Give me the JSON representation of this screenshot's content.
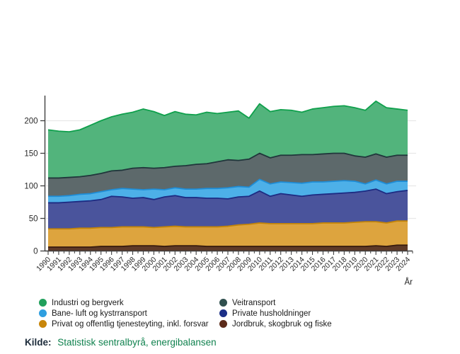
{
  "chart_data": {
    "type": "area",
    "stacked": true,
    "xlabel": "År",
    "ylabel": "",
    "years": [
      1990,
      1991,
      1992,
      1993,
      1994,
      1995,
      1996,
      1997,
      1998,
      1999,
      2000,
      2001,
      2002,
      2003,
      2004,
      2005,
      2006,
      2007,
      2008,
      2009,
      2010,
      2011,
      2012,
      2013,
      2014,
      2015,
      2016,
      2017,
      2018,
      2019,
      2020,
      2021,
      2022,
      2023,
      2024
    ],
    "yticks": [
      0,
      50,
      100,
      150,
      200
    ],
    "ylim": [
      0,
      238
    ],
    "grid": "horizontal",
    "legend_position": "bottom",
    "series": [
      {
        "name": "Jordbruk, skogbruk og fiske",
        "fill": "#5e3a28",
        "stroke": "#381b0e",
        "dot": "#5c2b1a",
        "values": [
          6,
          6,
          6,
          6,
          6,
          7,
          7,
          7,
          8,
          8,
          8,
          7,
          8,
          8,
          8,
          7,
          7,
          7,
          7,
          7,
          7,
          7,
          7,
          7,
          7,
          7,
          7,
          7,
          7,
          7,
          7,
          8,
          7,
          9,
          9
        ]
      },
      {
        "name": "Privat og offentlig tjenesteyting, inkl. forsvar",
        "fill": "#dda43e",
        "stroke": "#c28409",
        "dot": "#c8860a",
        "values": [
          28,
          28,
          28,
          29,
          29,
          29,
          29,
          30,
          29,
          29,
          28,
          30,
          30,
          29,
          29,
          30,
          30,
          31,
          33,
          34,
          36,
          35,
          35,
          35,
          35,
          35,
          36,
          36,
          36,
          37,
          38,
          37,
          36,
          37,
          37
        ]
      },
      {
        "name": "Private husholdninger",
        "fill": "#4a549c",
        "stroke": "#1d2b82",
        "dot": "#1b2f87",
        "values": [
          40,
          40,
          41,
          41,
          42,
          43,
          48,
          46,
          44,
          45,
          43,
          46,
          47,
          45,
          45,
          44,
          44,
          42,
          43,
          43,
          49,
          42,
          46,
          44,
          42,
          44,
          44,
          45,
          46,
          46,
          47,
          50,
          45,
          45,
          47
        ]
      },
      {
        "name": "Bane- luft og kystrransport",
        "fill": "#4db0e8",
        "stroke": "#1f8dd6",
        "dot": "#2f9fe0",
        "values": [
          10,
          10,
          10,
          11,
          11,
          12,
          10,
          13,
          14,
          12,
          16,
          11,
          12,
          13,
          13,
          15,
          15,
          17,
          16,
          14,
          18,
          19,
          18,
          19,
          20,
          20,
          19,
          19,
          19,
          17,
          11,
          14,
          15,
          16,
          14
        ]
      },
      {
        "name": "Veitransport",
        "fill": "#5d696b",
        "stroke": "#20363b",
        "dot": "#30504e",
        "values": [
          28,
          28,
          28,
          27,
          28,
          28,
          29,
          28,
          32,
          34,
          32,
          34,
          33,
          36,
          38,
          38,
          41,
          43,
          40,
          43,
          40,
          40,
          41,
          42,
          44,
          42,
          43,
          43,
          42,
          39,
          41,
          40,
          41,
          40,
          40
        ]
      },
      {
        "name": "Industri og bergverk",
        "fill": "#52b47c",
        "stroke": "#0fa04c",
        "dot": "#21a05c",
        "values": [
          74,
          72,
          70,
          72,
          77,
          81,
          83,
          86,
          86,
          90,
          87,
          80,
          84,
          79,
          76,
          79,
          74,
          73,
          76,
          63,
          76,
          71,
          70,
          69,
          65,
          70,
          71,
          72,
          73,
          74,
          72,
          81,
          76,
          71,
          69
        ]
      }
    ]
  },
  "legend": {
    "items": [
      {
        "label": "Industri og bergverk",
        "dot": "#21a05c"
      },
      {
        "label": "Bane- luft og kystrransport",
        "dot": "#2f9fe0"
      },
      {
        "label": "Privat og offentlig tjenesteyting, inkl. forsvar",
        "dot": "#c8860a"
      },
      {
        "label": "Veitransport",
        "dot": "#30504e"
      },
      {
        "label": "Private husholdninger",
        "dot": "#1b2f87"
      },
      {
        "label": "Jordbruk, skogbruk og fiske",
        "dot": "#5c2b1a"
      }
    ]
  },
  "axis": {
    "x_label": "År",
    "tick_color": "#3f3f3f",
    "grid_color": "#e8e8e8",
    "label_color": "#2a2a2a"
  },
  "source": {
    "prefix": "Kilde:",
    "text": "Statistisk sentralbyrå, energibalansen"
  }
}
